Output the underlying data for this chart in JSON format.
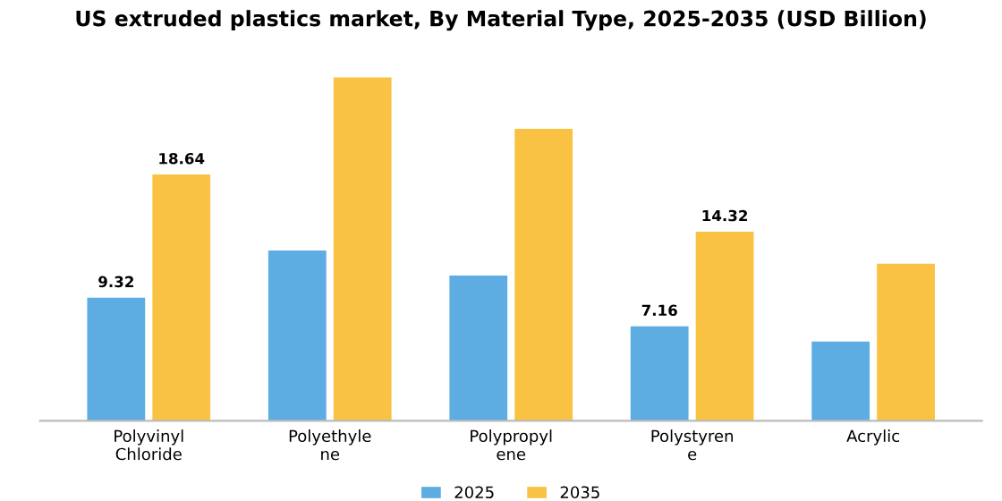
{
  "chart_data": {
    "type": "bar",
    "title": "US extruded plastics market, By Material Type, 2025-2035 (USD Billion)",
    "categories": [
      "Polyvinyl\nChloride",
      "Polyethyle\nne",
      "Polypropyl\nene",
      "Polystyren\ne",
      "Acrylic"
    ],
    "series": [
      {
        "name": "2025",
        "color": "#5dade2",
        "values": [
          9.32,
          12.9,
          11.0,
          7.16,
          6.0
        ],
        "value_labels": [
          "9.32",
          null,
          null,
          "7.16",
          null
        ]
      },
      {
        "name": "2035",
        "color": "#f9c242",
        "values": [
          18.64,
          26.0,
          22.1,
          14.32,
          11.9
        ],
        "value_labels": [
          "18.64",
          null,
          null,
          "14.32",
          null
        ]
      }
    ],
    "legend": "bottom",
    "grid": false,
    "tick_labels": "x"
  }
}
